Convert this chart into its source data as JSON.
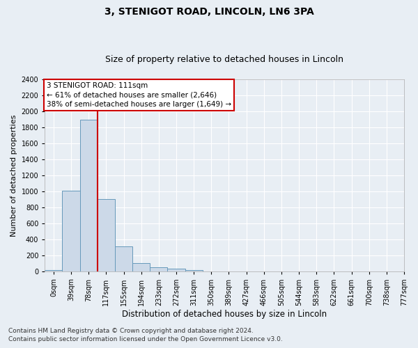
{
  "title": "3, STENIGOT ROAD, LINCOLN, LN6 3PA",
  "subtitle": "Size of property relative to detached houses in Lincoln",
  "xlabel": "Distribution of detached houses by size in Lincoln",
  "ylabel": "Number of detached properties",
  "bar_values": [
    20,
    1010,
    1900,
    910,
    315,
    110,
    55,
    35,
    20,
    0,
    0,
    0,
    0,
    0,
    0,
    0,
    0,
    0,
    0,
    0
  ],
  "bar_labels": [
    "0sqm",
    "39sqm",
    "78sqm",
    "117sqm",
    "155sqm",
    "194sqm",
    "233sqm",
    "272sqm",
    "311sqm",
    "350sqm",
    "389sqm",
    "427sqm",
    "466sqm",
    "505sqm",
    "544sqm",
    "583sqm",
    "622sqm",
    "661sqm",
    "700sqm",
    "738sqm",
    "777sqm"
  ],
  "bar_color": "#ccd9e8",
  "bar_edge_color": "#6699bb",
  "ylim": [
    0,
    2400
  ],
  "yticks": [
    0,
    200,
    400,
    600,
    800,
    1000,
    1200,
    1400,
    1600,
    1800,
    2000,
    2200,
    2400
  ],
  "vline_x_index": 3,
  "vline_color": "#cc0000",
  "annotation_text": "3 STENIGOT ROAD: 111sqm\n← 61% of detached houses are smaller (2,646)\n38% of semi-detached houses are larger (1,649) →",
  "annotation_box_color": "#cc0000",
  "footer_line1": "Contains HM Land Registry data © Crown copyright and database right 2024.",
  "footer_line2": "Contains public sector information licensed under the Open Government Licence v3.0.",
  "bg_color": "#e8eef4",
  "plot_bg_color": "#e8eef4",
  "title_fontsize": 10,
  "subtitle_fontsize": 9,
  "xlabel_fontsize": 8.5,
  "ylabel_fontsize": 8,
  "tick_fontsize": 7,
  "footer_fontsize": 6.5,
  "annotation_fontsize": 7.5
}
